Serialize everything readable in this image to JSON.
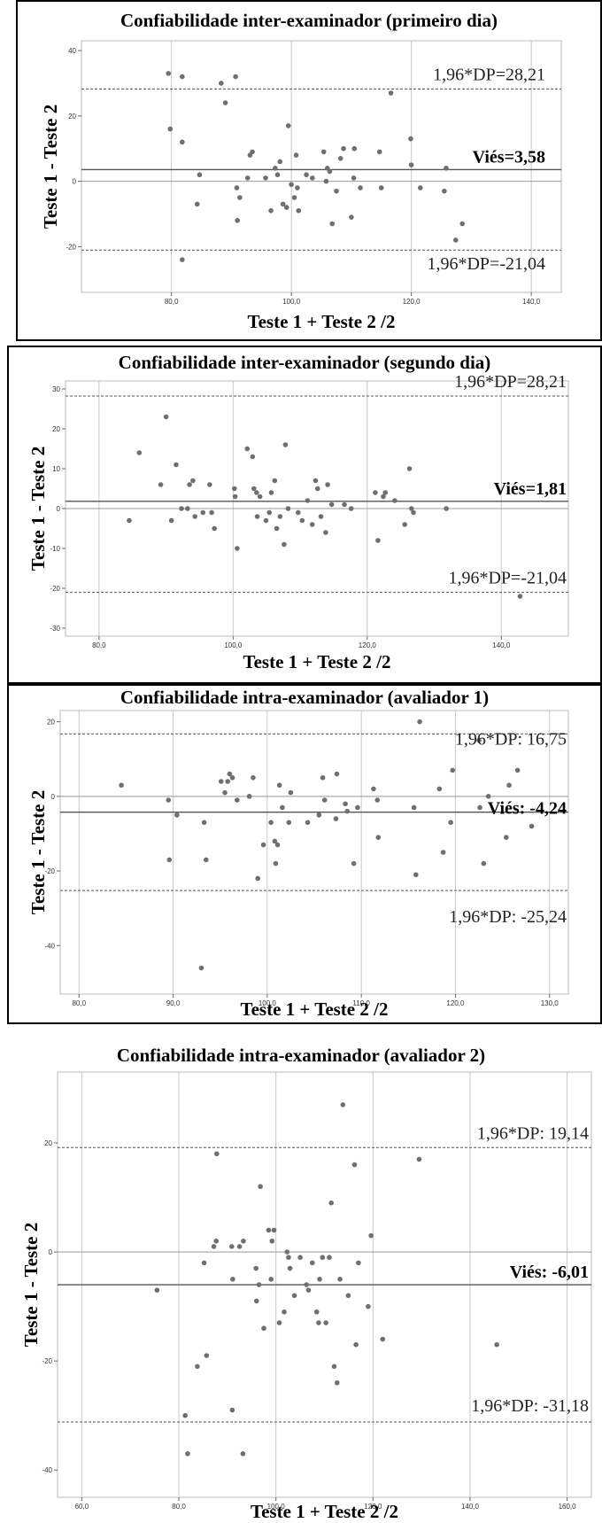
{
  "chart_data": [
    {
      "type": "scatter",
      "title": "Confiabilidade inter-examinador (primeiro dia)",
      "xlabel": "Teste 1 + Teste 2 /2",
      "ylabel": "Teste 1 - Teste 2",
      "xlim": [
        65,
        145
      ],
      "ylim": [
        -34,
        43
      ],
      "x_ticks": [
        80,
        100,
        120,
        140
      ],
      "x_tick_labels": [
        "80,0",
        "100,0",
        "120,0",
        "140,0"
      ],
      "y_ticks": [
        -20,
        0,
        20,
        40
      ],
      "y_tick_labels": [
        "-20",
        "0",
        "20",
        "40"
      ],
      "grid": true,
      "bias": 3.58,
      "upper_loa": 28.21,
      "lower_loa": -21.04,
      "bias_label": "Viés=3,58",
      "upper_label": "1,96*DP=28,21",
      "lower_label": "1,96*DP=-21,04",
      "points": [
        [
          79.5,
          33
        ],
        [
          79.8,
          16
        ],
        [
          81.8,
          32
        ],
        [
          81.8,
          12
        ],
        [
          81.8,
          -24
        ],
        [
          84.3,
          -7
        ],
        [
          84.7,
          2
        ],
        [
          88.3,
          30
        ],
        [
          89,
          24
        ],
        [
          90.7,
          32
        ],
        [
          90.9,
          -2
        ],
        [
          91,
          -12
        ],
        [
          91.4,
          -5
        ],
        [
          92.7,
          1
        ],
        [
          93.1,
          8
        ],
        [
          93.5,
          9
        ],
        [
          95.7,
          1
        ],
        [
          96.6,
          -9
        ],
        [
          97.3,
          4
        ],
        [
          97.7,
          2
        ],
        [
          98.1,
          6
        ],
        [
          98.6,
          -7
        ],
        [
          99.2,
          -8
        ],
        [
          99.5,
          17
        ],
        [
          100,
          -1
        ],
        [
          100.5,
          -5
        ],
        [
          100.8,
          8
        ],
        [
          101.2,
          -9
        ],
        [
          101,
          -2
        ],
        [
          102.5,
          2
        ],
        [
          103.5,
          1
        ],
        [
          105.4,
          9
        ],
        [
          105.8,
          0
        ],
        [
          106,
          4
        ],
        [
          106.4,
          3
        ],
        [
          106.8,
          -13
        ],
        [
          107.5,
          -3
        ],
        [
          108.2,
          7
        ],
        [
          108.7,
          10
        ],
        [
          110,
          -11
        ],
        [
          110.4,
          1
        ],
        [
          110.5,
          10
        ],
        [
          111.5,
          -2
        ],
        [
          114.7,
          9
        ],
        [
          115,
          -2
        ],
        [
          116.6,
          27
        ],
        [
          119.9,
          13
        ],
        [
          120,
          5
        ],
        [
          121.5,
          -2
        ],
        [
          125.5,
          -3
        ],
        [
          125.8,
          4
        ],
        [
          127.4,
          -18
        ],
        [
          128.5,
          -13
        ]
      ]
    },
    {
      "type": "scatter",
      "title": "Confiabilidade inter-examinador (segundo dia)",
      "xlabel": "Teste 1 + Teste 2 /2",
      "ylabel": "Teste 1 - Teste 2",
      "xlim": [
        75,
        150
      ],
      "ylim": [
        -32,
        32
      ],
      "x_ticks": [
        80,
        100,
        120,
        140
      ],
      "x_tick_labels": [
        "80,0",
        "100,0",
        "120,0",
        "140,0"
      ],
      "y_ticks": [
        -30,
        -20,
        -10,
        0,
        10,
        20,
        30
      ],
      "y_tick_labels": [
        "-30",
        "-20",
        "-10",
        "0",
        "10",
        "20",
        "30"
      ],
      "grid": true,
      "bias": 1.81,
      "upper_loa": 28.21,
      "lower_loa": -21.04,
      "bias_label": "Viés=1,81",
      "upper_label": "1,96*DP=28,21",
      "lower_label": "1,96*DP=-21,04",
      "points": [
        [
          84.5,
          -3
        ],
        [
          86,
          14
        ],
        [
          89.2,
          6
        ],
        [
          90,
          23
        ],
        [
          90.8,
          -3
        ],
        [
          91.5,
          11
        ],
        [
          92.3,
          0
        ],
        [
          93.2,
          0
        ],
        [
          93.5,
          6
        ],
        [
          94,
          7
        ],
        [
          94.3,
          -2
        ],
        [
          95.5,
          -1
        ],
        [
          96.5,
          6
        ],
        [
          97.2,
          -5
        ],
        [
          96.8,
          -1
        ],
        [
          100.3,
          3
        ],
        [
          100.6,
          -10
        ],
        [
          100.2,
          5
        ],
        [
          102.1,
          15
        ],
        [
          102.9,
          13
        ],
        [
          103.1,
          5
        ],
        [
          103.5,
          4
        ],
        [
          104,
          3
        ],
        [
          103.6,
          -2
        ],
        [
          104.9,
          -3
        ],
        [
          105.4,
          -1
        ],
        [
          105.7,
          4
        ],
        [
          106.2,
          7
        ],
        [
          106.5,
          -5
        ],
        [
          107,
          -2
        ],
        [
          107.6,
          -9
        ],
        [
          107.8,
          16
        ],
        [
          108.2,
          0
        ],
        [
          109.7,
          -1
        ],
        [
          110.3,
          -3
        ],
        [
          111.1,
          2
        ],
        [
          111.8,
          -4
        ],
        [
          112.3,
          7
        ],
        [
          112.6,
          5
        ],
        [
          113.1,
          -2
        ],
        [
          113.8,
          -6
        ],
        [
          114.1,
          6
        ],
        [
          114.7,
          1
        ],
        [
          116.6,
          1
        ],
        [
          117.6,
          0
        ],
        [
          121.2,
          4
        ],
        [
          121.6,
          -8
        ],
        [
          122.4,
          3
        ],
        [
          122.7,
          4
        ],
        [
          124.1,
          2
        ],
        [
          125.6,
          -4
        ],
        [
          126.3,
          10
        ],
        [
          126.6,
          0
        ],
        [
          126.9,
          -1
        ],
        [
          131.8,
          0
        ],
        [
          142.8,
          -22
        ]
      ]
    },
    {
      "type": "scatter",
      "title": "Confiabilidade intra-examinador (avaliador 1)",
      "xlabel": "Teste 1 + Teste 2 /2",
      "ylabel": "Teste 1 - Teste 2",
      "xlim": [
        78,
        132
      ],
      "ylim": [
        -53,
        23
      ],
      "x_ticks": [
        80,
        90,
        100,
        110,
        120,
        130
      ],
      "x_tick_labels": [
        "80,0",
        "90,0",
        "100,0",
        "110,0",
        "120,0",
        "130,0"
      ],
      "y_ticks": [
        -40,
        -20,
        0,
        20
      ],
      "y_tick_labels": [
        "-40",
        "-20",
        "0",
        "20"
      ],
      "grid": true,
      "bias": -4.24,
      "upper_loa": 16.75,
      "lower_loa": -25.24,
      "bias_label": "Viés: -4,24",
      "upper_label": "1,96*DP: 16,75",
      "lower_label": "1,96*DP: -25,24",
      "points": [
        [
          84.5,
          3
        ],
        [
          89.5,
          -1
        ],
        [
          89.6,
          -17
        ],
        [
          90.4,
          -5
        ],
        [
          93,
          -46
        ],
        [
          93.3,
          -7
        ],
        [
          93.5,
          -17
        ],
        [
          95.1,
          4
        ],
        [
          95.5,
          1
        ],
        [
          95.8,
          4
        ],
        [
          96,
          6
        ],
        [
          96.3,
          5
        ],
        [
          96.8,
          -1
        ],
        [
          98.1,
          0
        ],
        [
          98.5,
          5
        ],
        [
          99,
          -22
        ],
        [
          99.6,
          -13
        ],
        [
          100.4,
          -7
        ],
        [
          100.8,
          -12
        ],
        [
          100.9,
          -18
        ],
        [
          101.1,
          -13
        ],
        [
          101.3,
          3
        ],
        [
          101.6,
          -3
        ],
        [
          102.3,
          -7
        ],
        [
          102.5,
          1
        ],
        [
          104.3,
          -7
        ],
        [
          105.5,
          -5
        ],
        [
          105.9,
          5
        ],
        [
          106.1,
          -1
        ],
        [
          107.3,
          -6
        ],
        [
          107.4,
          6
        ],
        [
          108.3,
          -2
        ],
        [
          108.5,
          -4
        ],
        [
          109.2,
          -18
        ],
        [
          109.6,
          -3
        ],
        [
          111.3,
          2
        ],
        [
          111.7,
          -1
        ],
        [
          111.8,
          -11
        ],
        [
          115.6,
          -3
        ],
        [
          115.8,
          -21
        ],
        [
          116.2,
          20
        ],
        [
          118.3,
          2
        ],
        [
          118.7,
          -15
        ],
        [
          119.5,
          -7
        ],
        [
          119.7,
          7
        ],
        [
          122.5,
          15
        ],
        [
          122.6,
          -3
        ],
        [
          123,
          -18
        ],
        [
          123.5,
          0
        ],
        [
          125.4,
          -11
        ],
        [
          125.7,
          3
        ],
        [
          126.6,
          7
        ],
        [
          128.1,
          -8
        ]
      ]
    },
    {
      "type": "scatter",
      "title": "Confiabilidade intra-examinador (avaliador 2)",
      "xlabel": "Teste 1 + Teste 2 /2",
      "ylabel": "Teste 1 - Teste 2",
      "xlim": [
        55,
        165
      ],
      "ylim": [
        -45,
        33
      ],
      "x_ticks": [
        60,
        80,
        100,
        120,
        140,
        160
      ],
      "x_tick_labels": [
        "60,0",
        "80,0",
        "100,0",
        "120,0",
        "140,0",
        "160,0"
      ],
      "y_ticks": [
        -40,
        -20,
        0,
        20
      ],
      "y_tick_labels": [
        "-40",
        "-20",
        "0",
        "20"
      ],
      "grid": true,
      "bias": -6.01,
      "upper_loa": 19.14,
      "lower_loa": -31.18,
      "bias_label": "Viés: -6,01",
      "upper_label": "1,96*DP: 19,14",
      "lower_label": "1,96*DP: -31,18",
      "points": [
        [
          75.5,
          -7
        ],
        [
          81.3,
          -30
        ],
        [
          81.8,
          -37
        ],
        [
          83.8,
          -21
        ],
        [
          85.2,
          -2
        ],
        [
          85.7,
          -19
        ],
        [
          87.2,
          1
        ],
        [
          87.7,
          2
        ],
        [
          87.8,
          18
        ],
        [
          90.9,
          1
        ],
        [
          91,
          -29
        ],
        [
          91.1,
          -5
        ],
        [
          92.5,
          1
        ],
        [
          93.2,
          -37
        ],
        [
          93.3,
          2
        ],
        [
          95.9,
          -3
        ],
        [
          96,
          -9
        ],
        [
          96.5,
          -6
        ],
        [
          96.8,
          12
        ],
        [
          97.5,
          -14
        ],
        [
          98.5,
          4
        ],
        [
          99,
          -5
        ],
        [
          99.2,
          2
        ],
        [
          99.6,
          4
        ],
        [
          100.7,
          -13
        ],
        [
          101.7,
          -11
        ],
        [
          102.3,
          0
        ],
        [
          102.6,
          -1
        ],
        [
          102.9,
          -3
        ],
        [
          103.8,
          -8
        ],
        [
          105,
          -1
        ],
        [
          106.3,
          -6
        ],
        [
          106.7,
          -7
        ],
        [
          107.5,
          -2
        ],
        [
          108.4,
          -11
        ],
        [
          108.8,
          -13
        ],
        [
          109,
          -5
        ],
        [
          109.6,
          -1
        ],
        [
          110.3,
          -13
        ],
        [
          111,
          -1
        ],
        [
          111.4,
          9
        ],
        [
          112,
          -21
        ],
        [
          112.6,
          -24
        ],
        [
          113.2,
          -5
        ],
        [
          113.8,
          27
        ],
        [
          114.9,
          -8
        ],
        [
          116.2,
          16
        ],
        [
          116.5,
          -17
        ],
        [
          117,
          -2
        ],
        [
          119,
          -10
        ],
        [
          119.6,
          3
        ],
        [
          122,
          -16
        ],
        [
          129.5,
          17
        ],
        [
          145.5,
          -17
        ]
      ]
    }
  ]
}
